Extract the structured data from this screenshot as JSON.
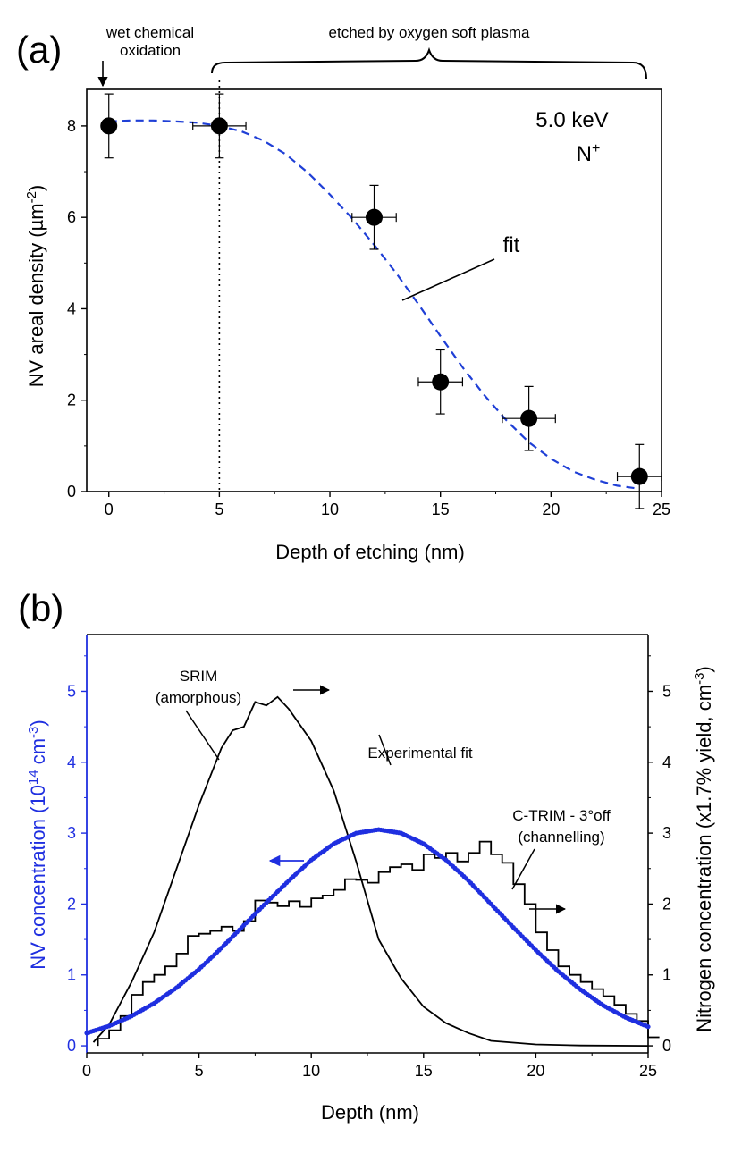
{
  "colors": {
    "axis": "#000000",
    "fit_a": "#1f3fd6",
    "fit_b": "#1f2fe0",
    "nv_axis": "#1f2fe0"
  },
  "chart_data": [
    {
      "panel": "(a)",
      "type": "scatter",
      "xlabel": "Depth of etching (nm)",
      "ylabel": "NV areal density (µm",
      "ylabel_sup": "-2",
      "ylabel_end": ")",
      "xlim": [
        -1,
        25
      ],
      "ylim": [
        0,
        8.8
      ],
      "xticks": [
        0,
        5,
        10,
        15,
        20,
        25
      ],
      "yticks": [
        0,
        2,
        4,
        6,
        8
      ],
      "points": [
        {
          "x": 0,
          "y": 8.0,
          "xerr": 0,
          "yerr": 0.7
        },
        {
          "x": 5,
          "y": 8.0,
          "xerr": 1.2,
          "yerr": 0.7
        },
        {
          "x": 12,
          "y": 6.0,
          "xerr": 1.0,
          "yerr": 0.7
        },
        {
          "x": 15,
          "y": 2.4,
          "xerr": 1.0,
          "yerr": 0.7
        },
        {
          "x": 19,
          "y": 1.6,
          "xerr": 1.2,
          "yerr": 0.7
        },
        {
          "x": 24,
          "y": 0.33,
          "xerr": 1.0,
          "yerr": 0.7
        }
      ],
      "fit": {
        "x": [
          0,
          1,
          2,
          3,
          4,
          5,
          6,
          7,
          8,
          9,
          10,
          11,
          12,
          13,
          14,
          15,
          16,
          17,
          18,
          19,
          20,
          21,
          22,
          23,
          24
        ],
        "y": [
          8.1,
          8.12,
          8.12,
          8.1,
          8.07,
          8.0,
          7.88,
          7.68,
          7.38,
          6.98,
          6.5,
          5.98,
          5.4,
          4.78,
          4.1,
          3.4,
          2.72,
          2.1,
          1.55,
          1.08,
          0.72,
          0.44,
          0.26,
          0.13,
          0.06
        ]
      },
      "annotations": {
        "energy": "5.0 keV",
        "ion": "N",
        "ion_sup": "+",
        "wet_line1": "wet chemical",
        "wet_line2": "oxidation",
        "etched": "etched by oxygen soft plasma",
        "fit": "fit"
      }
    },
    {
      "panel": "(b)",
      "type": "line",
      "xlabel": "Depth (nm)",
      "ylabel_left": "NV concentration (10",
      "ylabel_left_sup1": "14",
      "ylabel_left_mid": " cm",
      "ylabel_left_sup2": "-3",
      "ylabel_left_end": ")",
      "ylabel_right": "Nitrogen concentration (x1.7% yield, cm",
      "ylabel_right_sup": "-3",
      "ylabel_right_end": ")",
      "xlim": [
        0,
        25
      ],
      "ylim": [
        -0.1,
        5.8
      ],
      "xticks": [
        0,
        5,
        10,
        15,
        20,
        25
      ],
      "yticks": [
        0,
        1,
        2,
        3,
        4,
        5
      ],
      "series": [
        {
          "name": "SRIM (amorphous)",
          "x": [
            0.3,
            1,
            2,
            3,
            4,
            5,
            5.5,
            6,
            6.5,
            7,
            7.5,
            8,
            8.5,
            9,
            10,
            11,
            12,
            13,
            14,
            15,
            16,
            17,
            18,
            20,
            22,
            25
          ],
          "y": [
            0.05,
            0.3,
            0.9,
            1.6,
            2.5,
            3.4,
            3.8,
            4.2,
            4.45,
            4.5,
            4.85,
            4.8,
            4.92,
            4.75,
            4.3,
            3.6,
            2.6,
            1.5,
            0.95,
            0.55,
            0.32,
            0.18,
            0.07,
            0.02,
            0.005,
            0.0
          ]
        },
        {
          "name": "Experimental fit",
          "x": [
            0,
            1,
            2,
            3,
            4,
            5,
            6,
            7,
            8,
            9,
            10,
            11,
            12,
            13,
            14,
            15,
            16,
            17,
            18,
            19,
            20,
            21,
            22,
            23,
            24,
            25
          ],
          "y": [
            0.18,
            0.28,
            0.42,
            0.6,
            0.82,
            1.08,
            1.38,
            1.7,
            2.02,
            2.33,
            2.62,
            2.85,
            3.0,
            3.05,
            3.0,
            2.85,
            2.62,
            2.33,
            2.0,
            1.67,
            1.35,
            1.05,
            0.79,
            0.57,
            0.4,
            0.27
          ]
        },
        {
          "name": "C-TRIM - 3°off (channelling)",
          "step": 0.5,
          "x0": 0.5,
          "y": [
            0.1,
            0.22,
            0.42,
            0.72,
            0.9,
            1.0,
            1.12,
            1.3,
            1.55,
            1.58,
            1.62,
            1.68,
            1.62,
            1.76,
            2.05,
            2.02,
            1.97,
            2.04,
            1.96,
            2.08,
            2.12,
            2.2,
            2.35,
            2.34,
            2.3,
            2.45,
            2.52,
            2.56,
            2.48,
            2.7,
            2.65,
            2.72,
            2.6,
            2.72,
            2.88,
            2.7,
            2.58,
            2.28,
            2.0,
            1.6,
            1.35,
            1.12,
            1.0,
            0.9,
            0.8,
            0.7,
            0.58,
            0.45,
            0.35,
            0.12
          ]
        }
      ],
      "annotations": {
        "srim_line1": "SRIM",
        "srim_line2": "(amorphous)",
        "exp": "Experimental fit",
        "ctrim_line1": "C-TRIM - 3°off",
        "ctrim_line2": "(channelling)"
      }
    }
  ]
}
